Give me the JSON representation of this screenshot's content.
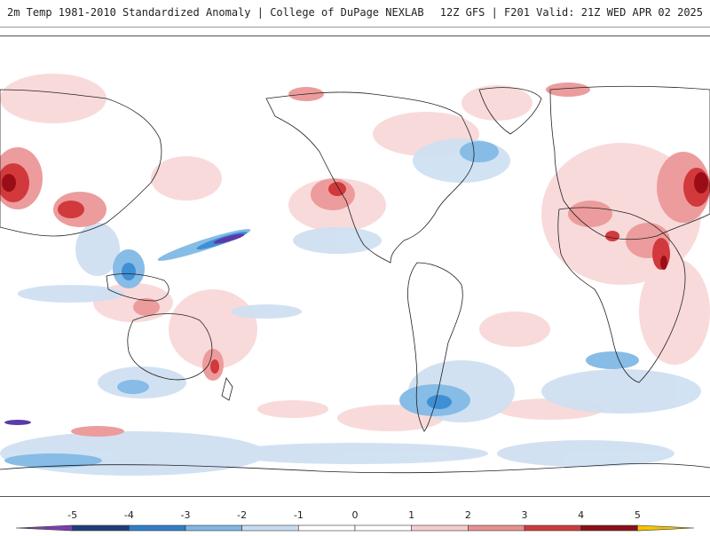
{
  "header": {
    "title": "2m Temp 1981-2010 Standardized Anomaly | College of DuPage NEXLAB",
    "run_info": "12Z GFS | F201 Valid: 21Z WED APR 02 2025"
  },
  "legend": {
    "ticks": [
      "-5",
      "-4",
      "-3",
      "-2",
      "-1",
      "0",
      "1",
      "2",
      "3",
      "4",
      "5"
    ],
    "colors": [
      "#7a3fb0",
      "#1f3d7a",
      "#2f7fc9",
      "#7fb6e3",
      "#c7dcf0",
      "#ffffff",
      "#ffffff",
      "#f6cccc",
      "#e88f8f",
      "#cf3a3a",
      "#8a0f16",
      "#f5c400"
    ]
  },
  "map": {
    "projection": "equirectangular-global",
    "colors": {
      "warm_light": "#f8d6d6",
      "warm_mid": "#ec9c9c",
      "warm_strong": "#d2393c",
      "warm_extreme": "#9b0d16",
      "cold_light": "#cfe0f2",
      "cold_mid": "#86bce6",
      "cold_strong": "#3f8fd6",
      "cold_extreme": "#5a3aa8",
      "coastline": "#222222"
    }
  }
}
